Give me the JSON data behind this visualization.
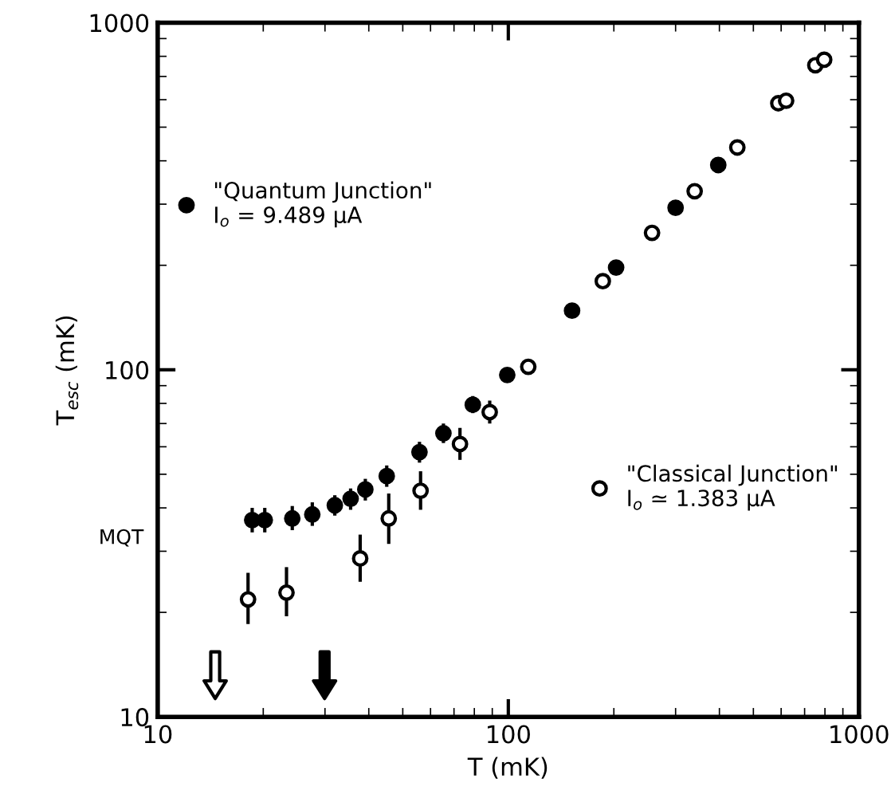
{
  "chart_data": {
    "type": "scatter",
    "xlabel": "T (mK)",
    "ylabel": "T$_{esc}$ (mK)",
    "log": "xy",
    "xlim": [
      10,
      1000
    ],
    "ylim": [
      10,
      1000
    ],
    "xticks": [
      10,
      100,
      1000
    ],
    "yticks": [
      10,
      100,
      1000
    ],
    "grid": false,
    "legend": "upper left",
    "marker": "circle",
    "series": [
      {
        "name": "\"Quantum Junction\"\nI$_{o}$ = 9.489 μA",
        "color": "#000000",
        "x": [
          18.6,
          20.2,
          24.2,
          27.6,
          32.0,
          35.5,
          39.1,
          45.0,
          55.8,
          65.3,
          79.2,
          99.3,
          152,
          203,
          300,
          397
        ],
        "values": [
          36.9,
          36.9,
          37.3,
          38.3,
          40.7,
          42.5,
          45.2,
          49.4,
          57.9,
          65.6,
          79.3,
          96.6,
          148,
          197,
          293,
          389
        ],
        "errors": [
          [
            34,
            40
          ],
          [
            34,
            40
          ],
          [
            34.5,
            40.5
          ],
          [
            35.5,
            41.5
          ],
          [
            38,
            43.5
          ],
          [
            39.5,
            45.5
          ],
          [
            42,
            48.5
          ],
          [
            46,
            53
          ],
          [
            54,
            62
          ],
          [
            61.5,
            70
          ],
          [
            75,
            84
          ],
          null,
          null,
          null,
          null,
          null
        ]
      },
      {
        "name": "\"Classical Junction\"\nI$_{o}$ ≃ 1.383 μA",
        "color": "#ffffff",
        "x": [
          18.1,
          23.3,
          37.8,
          45.6,
          56.2,
          72.8,
          88.5,
          114,
          186,
          257,
          340,
          450,
          589,
          620,
          751,
          796
        ],
        "values": [
          21.8,
          22.8,
          28.6,
          37.3,
          44.8,
          61.1,
          75.5,
          102,
          180,
          248,
          327,
          437,
          586,
          596,
          754,
          782
        ],
        "errors": [
          [
            18.5,
            26
          ],
          [
            19.5,
            27
          ],
          [
            24.5,
            33.5
          ],
          [
            31.5,
            44
          ],
          [
            39.5,
            51
          ],
          [
            55,
            68
          ],
          [
            70,
            81.5
          ],
          null,
          null,
          null,
          null,
          null,
          null,
          null,
          null,
          null
        ]
      }
    ],
    "annotations": [
      "MQT"
    ]
  }
}
